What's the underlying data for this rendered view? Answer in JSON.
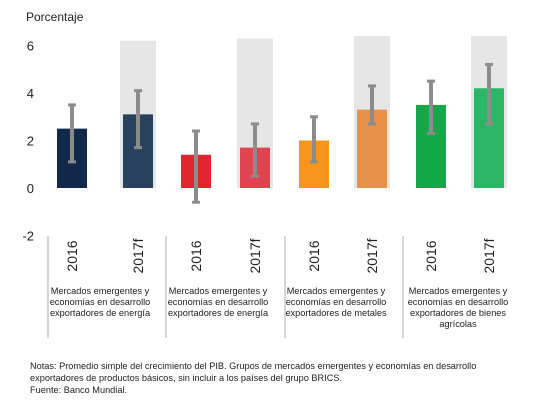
{
  "chart_data": {
    "type": "bar",
    "ylabel": "Porcentaje",
    "ylim": [
      -2,
      6
    ],
    "yticks": [
      -2,
      0,
      2,
      4,
      6
    ],
    "categories": [
      "2016",
      "2017f",
      "2016",
      "2017f",
      "2016",
      "2017f",
      "2016",
      "2017f"
    ],
    "values": [
      2.5,
      3.1,
      1.4,
      1.7,
      2.0,
      3.3,
      3.5,
      4.2
    ],
    "error_low": [
      1.1,
      1.7,
      -0.6,
      0.5,
      1.1,
      2.7,
      2.3,
      2.7
    ],
    "error_high": [
      3.5,
      4.1,
      2.4,
      2.7,
      3.0,
      4.3,
      4.5,
      5.2
    ],
    "background_range_top": [
      null,
      6.2,
      null,
      6.3,
      null,
      6.4,
      null,
      6.4
    ],
    "colors": [
      "#13294b",
      "#27415f",
      "#e0252f",
      "#e04450",
      "#f7941d",
      "#e8914a",
      "#14a84b",
      "#2bb564"
    ],
    "groups": [
      "Mercados emergentes y economías en desarrollo exportadores de energía",
      "Mercados emergentes y economías en desarrollo exportadores de energía",
      "Mercados emergentes y economías en desarrollo exportadores de metales",
      "Mercados emergentes y economías en desarrollo exportadores de bienes agrícolas"
    ]
  },
  "notes": {
    "line1": "Notas: Promedio simple del crecimiento del PIB. Grupos de mercados emergentes y economías en desarrollo",
    "line2": "exportadores de productos básicos, sin incluir a los países del grupo BRICS.",
    "line3": "Fuente: Banco Mundial."
  }
}
